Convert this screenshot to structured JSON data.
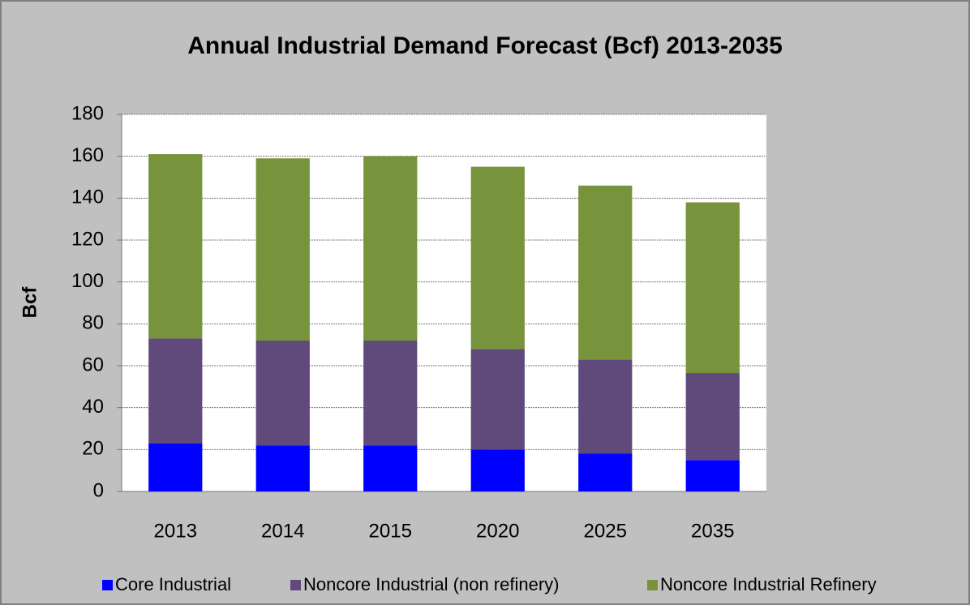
{
  "chart_data": {
    "type": "stacked_bar",
    "title": "Annual Industrial Demand Forecast (Bcf) 2013-2035",
    "y_label": "Bcf",
    "categories": [
      "2013",
      "2014",
      "2015",
      "2020",
      "2025",
      "2035"
    ],
    "series": [
      {
        "name": "Core Industrial",
        "color": "#0000ff",
        "values": [
          23,
          22,
          22,
          20,
          18,
          15
        ]
      },
      {
        "name": "Noncore Industrial (non refinery)",
        "color": "#604a7b",
        "values": [
          50,
          50,
          50,
          48,
          45,
          41.5
        ]
      },
      {
        "name": "Noncore Industrial Refinery",
        "color": "#77933c",
        "values": [
          88,
          87,
          88,
          87,
          83,
          81.5
        ]
      }
    ],
    "ylim": [
      0,
      180
    ],
    "yticks": [
      0,
      20,
      40,
      60,
      80,
      100,
      120,
      140,
      160,
      180
    ],
    "grid": true,
    "legend": "bottom"
  }
}
